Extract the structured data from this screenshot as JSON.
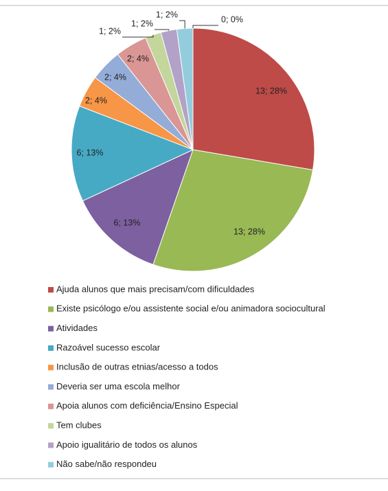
{
  "chart_data": {
    "type": "pie",
    "categories": [
      "Ajuda alunos que mais precisam/com dificuldades",
      "Existe psicólogo e/ou assistente social e/ou animadora sociocultural",
      "Atividades",
      "Razoável sucesso escolar",
      "Inclusão de outras etnias/acesso a todos",
      "Deveria ser uma escola melhor",
      "Apoia alunos com deficiência/Ensino Especial",
      "Tem clubes",
      "Apoio igualitário de todos os alunos",
      "Não sabe/não respondeu",
      null
    ],
    "values": [
      13,
      13,
      6,
      6,
      2,
      2,
      2,
      1,
      1,
      1,
      0
    ],
    "value_labels": [
      "13; 28%",
      "13; 28%",
      "6; 13%",
      "6; 13%",
      "2; 4%",
      "2; 4%",
      "2; 4%",
      "1; 2%",
      "1; 2%",
      "1; 2%",
      "0; 0%"
    ],
    "colors": [
      "#be4b48",
      "#98b954",
      "#7d60a0",
      "#46aac5",
      "#f79646",
      "#94acd8",
      "#d99694",
      "#c3d69b",
      "#b3a2c7",
      "#93cddd",
      "#fac090"
    ]
  }
}
